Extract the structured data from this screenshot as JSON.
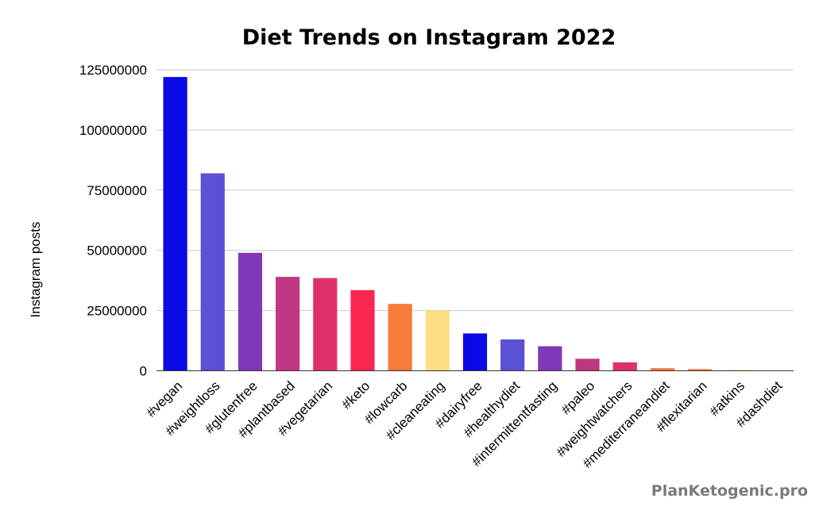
{
  "chart_data": {
    "type": "bar",
    "title": "Diet Trends on Instagram 2022",
    "xlabel": "",
    "ylabel": "Instagram posts",
    "ylim": [
      0,
      125000000
    ],
    "yticks": [
      0,
      25000000,
      50000000,
      75000000,
      100000000,
      125000000
    ],
    "grid": true,
    "categories": [
      "#vegan",
      "#weightloss",
      "#glutenfree",
      "#plantbased",
      "#vegetarian",
      "#keto",
      "#lowcarb",
      "#cleaneating",
      "#dairyfree",
      "#healthydiet",
      "#intermittentfasting",
      "#paleo",
      "#weightwatchers",
      "#mediterraneandiet",
      "#flexitarian",
      "#atkins",
      "#dashdiet"
    ],
    "values": [
      122000000,
      82000000,
      49000000,
      39000000,
      38500000,
      33500000,
      27800000,
      25000000,
      15500000,
      13000000,
      10200000,
      5000000,
      3500000,
      1100000,
      700000,
      350000,
      150000
    ],
    "colors": [
      "#0a0ae6",
      "#5b50d6",
      "#8038b8",
      "#c03680",
      "#e03068",
      "#fb2650",
      "#f97b39",
      "#fedd83",
      "#0a0ae6",
      "#5b50d6",
      "#8038b8",
      "#c03680",
      "#e03068",
      "#f97b39",
      "#f97b39",
      "#fedd83",
      "#fedd83"
    ]
  },
  "watermark": "PlanKetogenic.pro"
}
